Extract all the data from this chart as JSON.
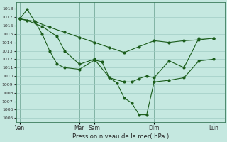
{
  "bg_color": "#c5e8e0",
  "grid_color": "#a0ccc4",
  "line_color": "#1a5c1a",
  "xlabel": "Pression niveau de la mer( hPa )",
  "ylim": [
    1004.5,
    1018.8
  ],
  "ytick_min": 1005,
  "ytick_max": 1018,
  "x_day_labels": [
    "Ven",
    "Mar",
    "Sam",
    "Dim",
    "Lun"
  ],
  "x_day_positions": [
    0,
    8,
    10,
    18,
    26
  ],
  "xlim": [
    -0.5,
    27.5
  ],
  "series1_x": [
    0,
    2,
    4,
    6,
    8,
    10,
    12,
    14,
    16,
    18,
    20,
    22,
    24,
    26
  ],
  "series1_y": [
    1016.8,
    1016.5,
    1015.8,
    1015.2,
    1014.6,
    1014.0,
    1013.4,
    1012.8,
    1013.5,
    1014.2,
    1014.0,
    1014.2,
    1014.3,
    1014.5
  ],
  "series2_x": [
    0,
    1,
    2,
    3,
    4,
    5,
    6,
    8,
    10,
    11,
    12,
    13,
    14,
    15,
    16,
    17,
    18,
    20,
    22,
    24,
    26
  ],
  "series2_y": [
    1016.8,
    1017.9,
    1016.5,
    1015.0,
    1013.0,
    1011.4,
    1011.0,
    1010.8,
    1011.9,
    1011.7,
    1009.8,
    1009.2,
    1007.4,
    1006.8,
    1005.4,
    1005.4,
    1009.3,
    1009.5,
    1009.8,
    1011.8,
    1012.0
  ],
  "series3_x": [
    0,
    1,
    3,
    5,
    6,
    8,
    10,
    12,
    14,
    15,
    16,
    17,
    18,
    20,
    22,
    24,
    26
  ],
  "series3_y": [
    1016.8,
    1016.6,
    1015.9,
    1014.7,
    1013.0,
    1011.4,
    1012.0,
    1009.8,
    1009.3,
    1009.3,
    1009.7,
    1010.0,
    1009.8,
    1011.8,
    1011.0,
    1014.5,
    1014.5
  ]
}
